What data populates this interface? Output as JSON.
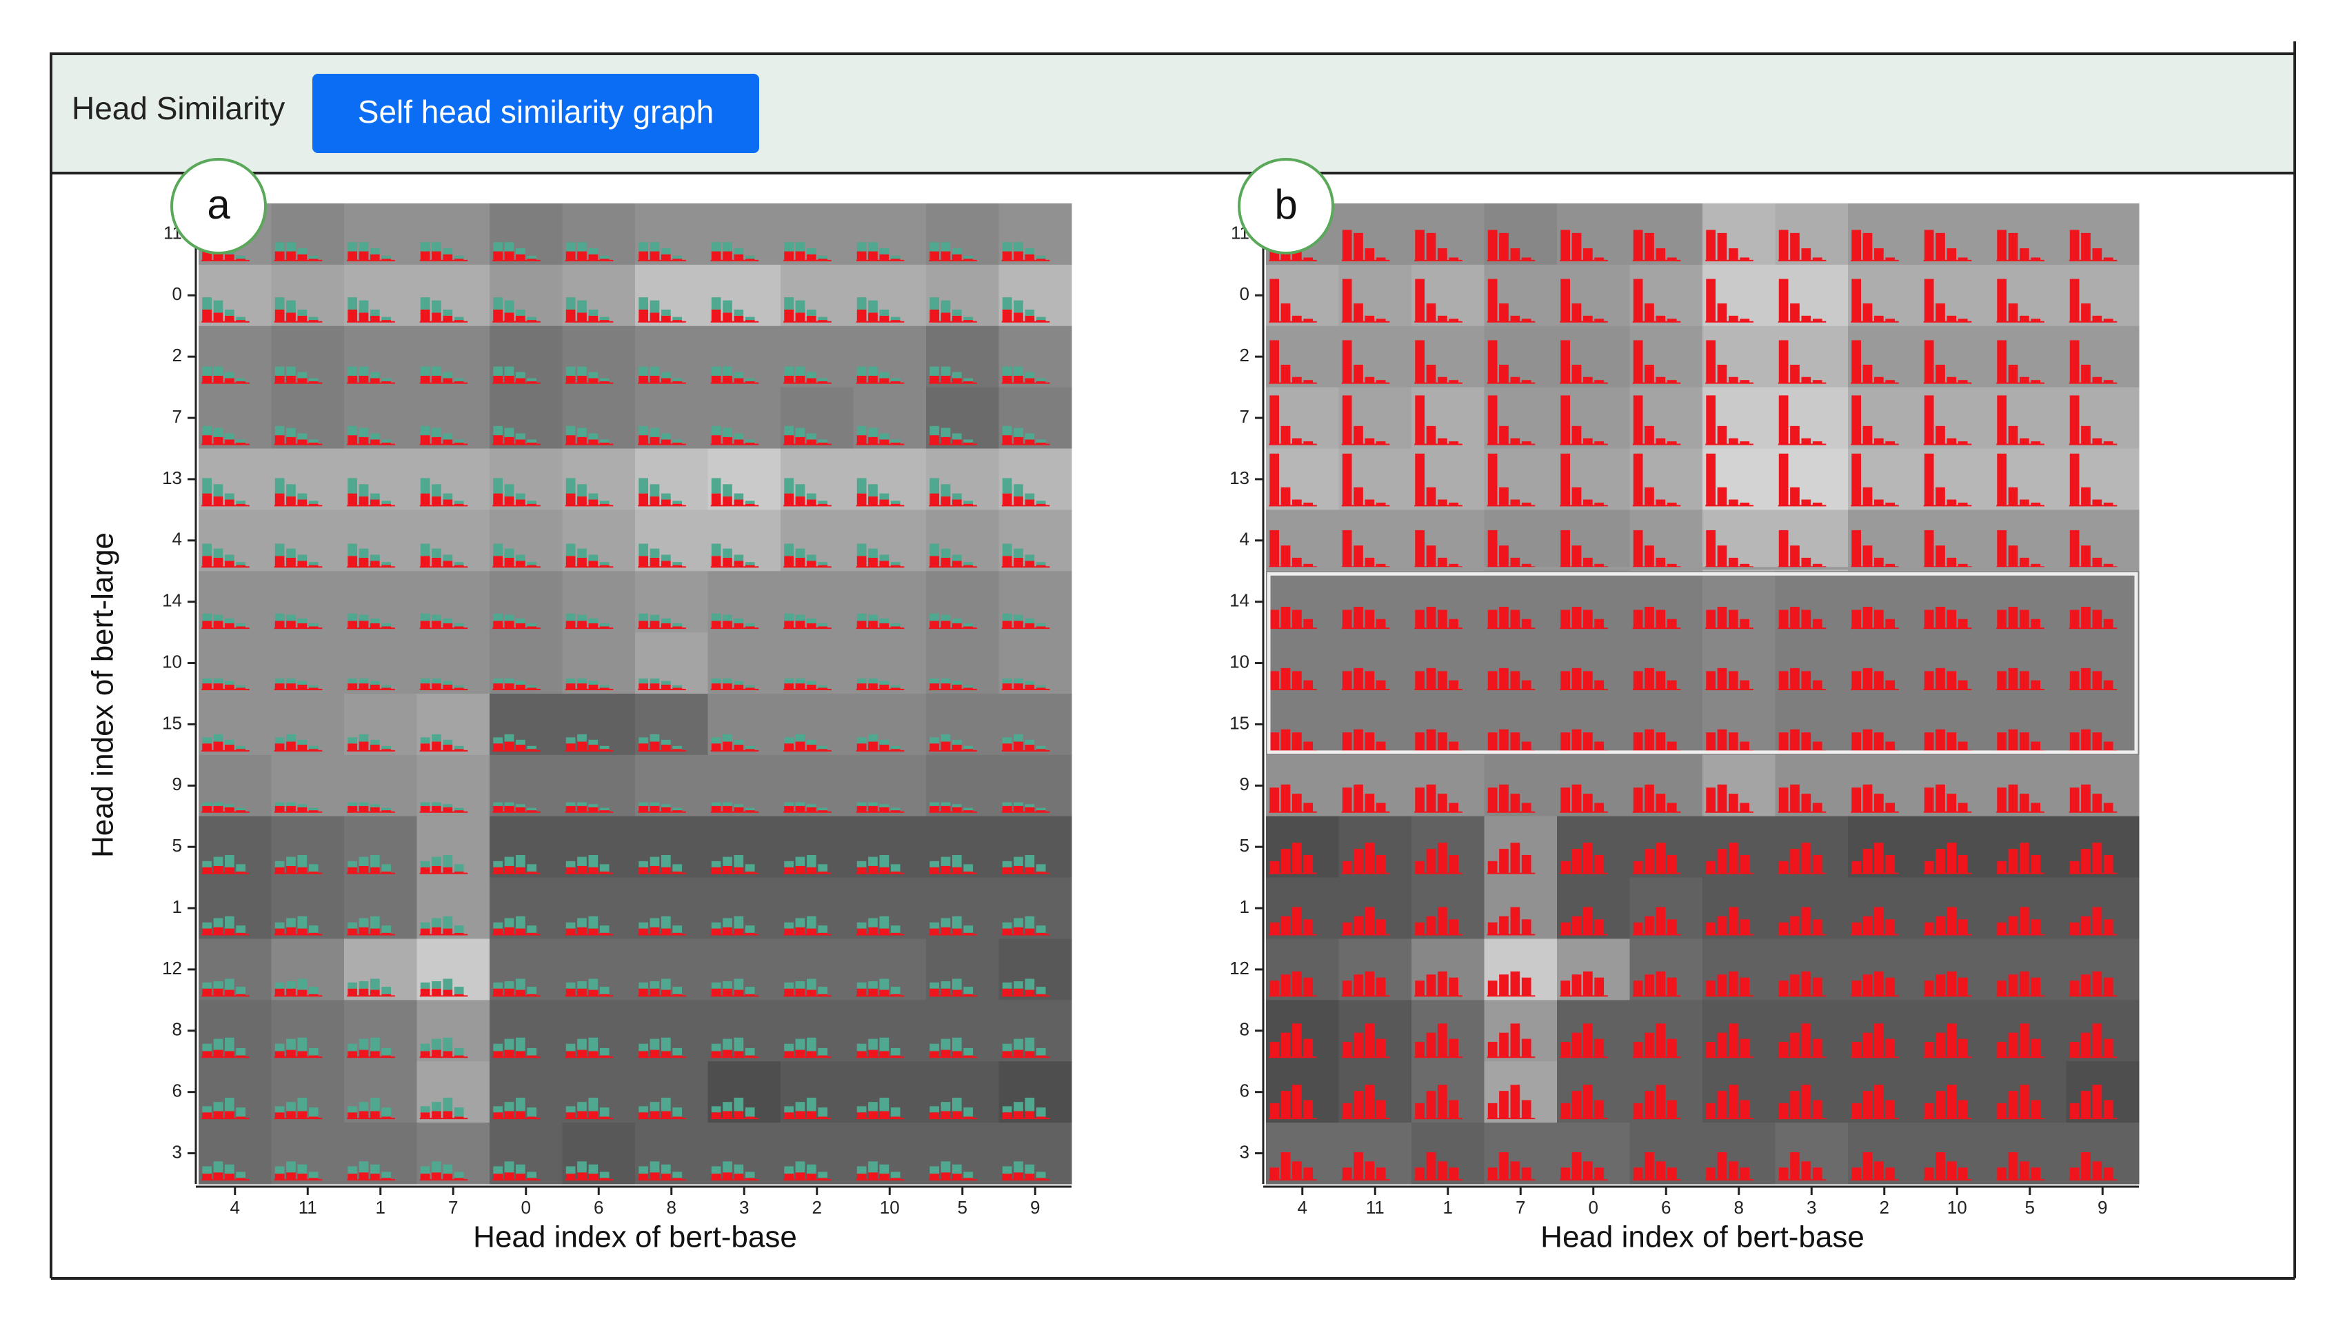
{
  "header": {
    "title": "Head Similarity",
    "button": "Self head similarity graph"
  },
  "y_axis_title": "Head index of bert-large",
  "x_axis_title": "Head index of bert-base",
  "row_labels": [
    "11",
    "0",
    "2",
    "7",
    "13",
    "4",
    "14",
    "10",
    "15",
    "9",
    "5",
    "1",
    "12",
    "8",
    "6",
    "3"
  ],
  "column_labels": [
    "4",
    "11",
    "1",
    "7",
    "0",
    "6",
    "8",
    "3",
    "2",
    "10",
    "5",
    "9"
  ],
  "bar_colors": {
    "red": "#f0151c",
    "teal": "#4fa88f"
  },
  "panels": [
    {
      "label": "a",
      "cells": [
        [
          0.55,
          0.5,
          0.55,
          0.55,
          0.45,
          0.5,
          0.55,
          0.55,
          0.55,
          0.55,
          0.5,
          0.55
        ],
        [
          0.7,
          0.65,
          0.7,
          0.7,
          0.6,
          0.65,
          0.8,
          0.8,
          0.7,
          0.7,
          0.65,
          0.75
        ],
        [
          0.5,
          0.45,
          0.5,
          0.5,
          0.4,
          0.45,
          0.5,
          0.5,
          0.5,
          0.5,
          0.4,
          0.5
        ],
        [
          0.5,
          0.45,
          0.5,
          0.5,
          0.4,
          0.45,
          0.5,
          0.5,
          0.45,
          0.5,
          0.35,
          0.45
        ],
        [
          0.7,
          0.7,
          0.7,
          0.7,
          0.65,
          0.7,
          0.8,
          0.85,
          0.75,
          0.75,
          0.7,
          0.75
        ],
        [
          0.65,
          0.65,
          0.65,
          0.65,
          0.6,
          0.65,
          0.75,
          0.75,
          0.65,
          0.65,
          0.6,
          0.65
        ],
        [
          0.55,
          0.55,
          0.55,
          0.55,
          0.5,
          0.55,
          0.6,
          0.55,
          0.55,
          0.55,
          0.5,
          0.55
        ],
        [
          0.55,
          0.55,
          0.55,
          0.55,
          0.5,
          0.55,
          0.65,
          0.55,
          0.55,
          0.55,
          0.5,
          0.55
        ],
        [
          0.55,
          0.55,
          0.6,
          0.65,
          0.3,
          0.3,
          0.35,
          0.5,
          0.5,
          0.5,
          0.45,
          0.45
        ],
        [
          0.5,
          0.55,
          0.55,
          0.6,
          0.4,
          0.4,
          0.45,
          0.45,
          0.45,
          0.45,
          0.4,
          0.4
        ],
        [
          0.3,
          0.35,
          0.4,
          0.6,
          0.25,
          0.25,
          0.25,
          0.25,
          0.25,
          0.25,
          0.25,
          0.25
        ],
        [
          0.3,
          0.35,
          0.4,
          0.6,
          0.3,
          0.3,
          0.3,
          0.3,
          0.3,
          0.3,
          0.3,
          0.3
        ],
        [
          0.4,
          0.5,
          0.7,
          0.85,
          0.35,
          0.35,
          0.35,
          0.35,
          0.35,
          0.35,
          0.3,
          0.25
        ],
        [
          0.35,
          0.4,
          0.45,
          0.6,
          0.3,
          0.3,
          0.3,
          0.3,
          0.3,
          0.3,
          0.3,
          0.3
        ],
        [
          0.35,
          0.4,
          0.45,
          0.65,
          0.3,
          0.3,
          0.3,
          0.2,
          0.25,
          0.25,
          0.25,
          0.2
        ],
        [
          0.35,
          0.4,
          0.4,
          0.45,
          0.3,
          0.25,
          0.3,
          0.3,
          0.3,
          0.3,
          0.3,
          0.3
        ]
      ],
      "red_bars": [
        [
          0.15,
          0.15,
          0.1,
          0.03
        ],
        [
          0.2,
          0.15,
          0.1,
          0.03
        ],
        [
          0.12,
          0.12,
          0.08,
          0.03
        ],
        [
          0.15,
          0.12,
          0.08,
          0.03
        ],
        [
          0.2,
          0.15,
          0.1,
          0.03
        ],
        [
          0.18,
          0.15,
          0.1,
          0.03
        ],
        [
          0.12,
          0.12,
          0.08,
          0.03
        ],
        [
          0.1,
          0.1,
          0.08,
          0.03
        ],
        [
          0.12,
          0.15,
          0.1,
          0.03
        ],
        [
          0.1,
          0.1,
          0.08,
          0.03
        ],
        [
          0.1,
          0.12,
          0.1,
          0.03
        ],
        [
          0.1,
          0.12,
          0.1,
          0.03
        ],
        [
          0.12,
          0.12,
          0.1,
          0.03
        ],
        [
          0.1,
          0.12,
          0.1,
          0.03
        ],
        [
          0.1,
          0.12,
          0.12,
          0.03
        ],
        [
          0.1,
          0.12,
          0.1,
          0.03
        ]
      ],
      "teal_bars": [
        [
          0.15,
          0.15,
          0.1,
          0.05
        ],
        [
          0.2,
          0.2,
          0.1,
          0.05
        ],
        [
          0.15,
          0.15,
          0.1,
          0.05
        ],
        [
          0.15,
          0.15,
          0.1,
          0.05
        ],
        [
          0.25,
          0.2,
          0.1,
          0.05
        ],
        [
          0.2,
          0.15,
          0.1,
          0.05
        ],
        [
          0.12,
          0.1,
          0.08,
          0.05
        ],
        [
          0.08,
          0.08,
          0.06,
          0.04
        ],
        [
          0.1,
          0.12,
          0.08,
          0.05
        ],
        [
          0.06,
          0.06,
          0.05,
          0.04
        ],
        [
          0.1,
          0.15,
          0.2,
          0.12
        ],
        [
          0.1,
          0.15,
          0.2,
          0.12
        ],
        [
          0.1,
          0.12,
          0.18,
          0.12
        ],
        [
          0.12,
          0.18,
          0.22,
          0.12
        ],
        [
          0.1,
          0.15,
          0.22,
          0.15
        ],
        [
          0.12,
          0.18,
          0.15,
          0.1
        ]
      ]
    },
    {
      "label": "b",
      "cells": [
        [
          0.55,
          0.55,
          0.55,
          0.5,
          0.55,
          0.55,
          0.75,
          0.7,
          0.6,
          0.6,
          0.6,
          0.6
        ],
        [
          0.7,
          0.65,
          0.7,
          0.6,
          0.6,
          0.65,
          0.85,
          0.85,
          0.7,
          0.7,
          0.7,
          0.7
        ],
        [
          0.6,
          0.6,
          0.6,
          0.55,
          0.55,
          0.6,
          0.75,
          0.75,
          0.6,
          0.6,
          0.6,
          0.6
        ],
        [
          0.7,
          0.65,
          0.7,
          0.6,
          0.6,
          0.65,
          0.85,
          0.85,
          0.7,
          0.7,
          0.7,
          0.7
        ],
        [
          0.75,
          0.7,
          0.7,
          0.65,
          0.65,
          0.7,
          0.9,
          0.9,
          0.75,
          0.75,
          0.75,
          0.75
        ],
        [
          0.6,
          0.6,
          0.6,
          0.55,
          0.55,
          0.6,
          0.75,
          0.75,
          0.6,
          0.6,
          0.6,
          0.6
        ],
        [
          0.45,
          0.45,
          0.45,
          0.45,
          0.45,
          0.45,
          0.5,
          0.45,
          0.45,
          0.45,
          0.45,
          0.45
        ],
        [
          0.45,
          0.45,
          0.45,
          0.45,
          0.45,
          0.45,
          0.5,
          0.45,
          0.45,
          0.45,
          0.45,
          0.45
        ],
        [
          0.45,
          0.45,
          0.45,
          0.45,
          0.45,
          0.45,
          0.5,
          0.45,
          0.45,
          0.45,
          0.45,
          0.45
        ],
        [
          0.55,
          0.55,
          0.55,
          0.5,
          0.5,
          0.5,
          0.65,
          0.55,
          0.55,
          0.55,
          0.55,
          0.55
        ],
        [
          0.2,
          0.25,
          0.3,
          0.55,
          0.25,
          0.25,
          0.25,
          0.25,
          0.2,
          0.2,
          0.2,
          0.2
        ],
        [
          0.25,
          0.25,
          0.3,
          0.55,
          0.25,
          0.3,
          0.25,
          0.25,
          0.25,
          0.25,
          0.25,
          0.25
        ],
        [
          0.3,
          0.35,
          0.5,
          0.85,
          0.6,
          0.35,
          0.3,
          0.3,
          0.3,
          0.3,
          0.3,
          0.3
        ],
        [
          0.2,
          0.25,
          0.35,
          0.6,
          0.3,
          0.3,
          0.25,
          0.25,
          0.25,
          0.25,
          0.25,
          0.25
        ],
        [
          0.2,
          0.25,
          0.35,
          0.65,
          0.3,
          0.3,
          0.25,
          0.25,
          0.25,
          0.25,
          0.25,
          0.2
        ],
        [
          0.35,
          0.35,
          0.3,
          0.35,
          0.35,
          0.3,
          0.3,
          0.35,
          0.3,
          0.3,
          0.3,
          0.3
        ]
      ],
      "red_bars": [
        [
          0.5,
          0.45,
          0.2,
          0.05
        ],
        [
          0.7,
          0.3,
          0.1,
          0.05
        ],
        [
          0.7,
          0.3,
          0.1,
          0.05
        ],
        [
          0.8,
          0.3,
          0.1,
          0.05
        ],
        [
          0.85,
          0.3,
          0.1,
          0.05
        ],
        [
          0.6,
          0.35,
          0.15,
          0.05
        ],
        [
          0.3,
          0.35,
          0.3,
          0.15
        ],
        [
          0.3,
          0.35,
          0.3,
          0.15
        ],
        [
          0.3,
          0.35,
          0.3,
          0.15
        ],
        [
          0.4,
          0.45,
          0.3,
          0.15
        ],
        [
          0.2,
          0.4,
          0.5,
          0.3
        ],
        [
          0.2,
          0.3,
          0.45,
          0.25
        ],
        [
          0.25,
          0.35,
          0.4,
          0.3
        ],
        [
          0.25,
          0.4,
          0.55,
          0.3
        ],
        [
          0.25,
          0.45,
          0.55,
          0.3
        ],
        [
          0.2,
          0.45,
          0.3,
          0.2
        ]
      ]
    }
  ]
}
